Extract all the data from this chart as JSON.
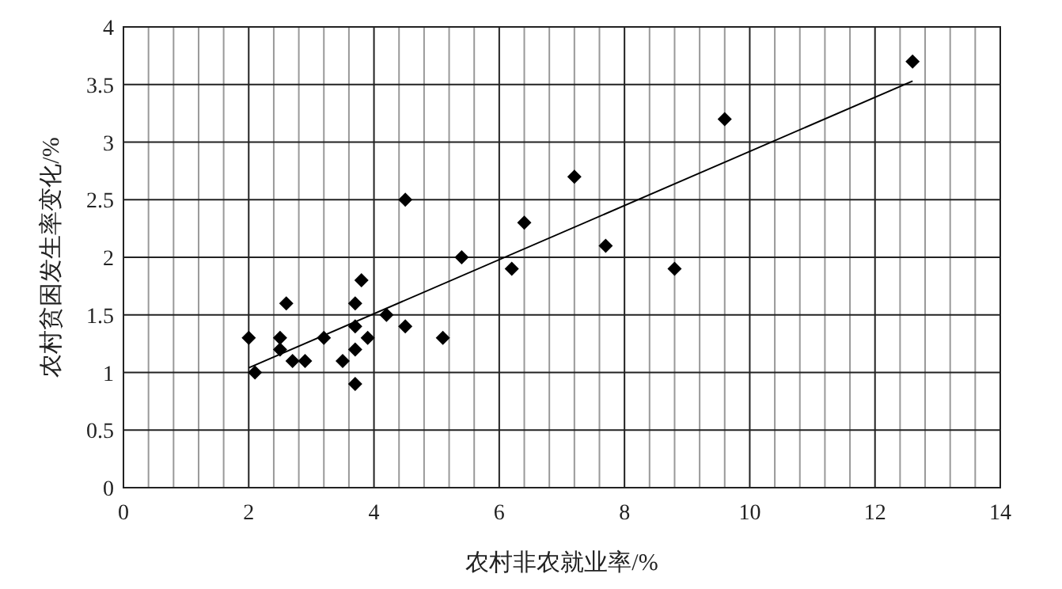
{
  "chart_data": {
    "type": "scatter",
    "xlabel": "农村非农就业率/%",
    "ylabel": "农村贫困发生率变化/%",
    "xlim": [
      0,
      14
    ],
    "ylim": [
      0,
      4
    ],
    "xticks": [
      0,
      {
        "value": 0.4,
        "label": null
      },
      {
        "value": 0.8,
        "label": null
      },
      {
        "value": 1.2,
        "label": null
      },
      {
        "value": 1.6,
        "label": null
      },
      2,
      {
        "value": 2.4,
        "label": null
      },
      {
        "value": 2.8,
        "label": null
      },
      {
        "value": 3.2,
        "label": null
      },
      {
        "value": 3.6,
        "label": null
      },
      4,
      {
        "value": 4.4,
        "label": null
      },
      {
        "value": 4.8,
        "label": null
      },
      {
        "value": 5.2,
        "label": null
      },
      {
        "value": 5.6,
        "label": null
      },
      6,
      {
        "value": 6.4,
        "label": null
      },
      {
        "value": 6.8,
        "label": null
      },
      {
        "value": 7.2,
        "label": null
      },
      {
        "value": 7.6,
        "label": null
      },
      8,
      {
        "value": 8.4,
        "label": null
      },
      {
        "value": 8.8,
        "label": null
      },
      {
        "value": 9.2,
        "label": null
      },
      {
        "value": 9.6,
        "label": null
      },
      10,
      {
        "value": 10.4,
        "label": null
      },
      {
        "value": 10.8,
        "label": null
      },
      {
        "value": 11.2,
        "label": null
      },
      {
        "value": 11.6,
        "label": null
      },
      12,
      {
        "value": 12.4,
        "label": null
      },
      {
        "value": 12.8,
        "label": null
      },
      {
        "value": 13.2,
        "label": null
      },
      {
        "value": 13.6,
        "label": null
      },
      14
    ],
    "yticks": [
      0,
      0.5,
      1,
      1.5,
      2,
      2.5,
      3,
      3.5,
      4
    ],
    "grid": true,
    "series": [
      {
        "marker": "diamond",
        "color": "#000000",
        "x": [
          2.0,
          2.1,
          2.5,
          2.5,
          2.6,
          2.7,
          2.9,
          3.2,
          3.5,
          3.7,
          3.7,
          3.7,
          3.7,
          3.8,
          3.9,
          4.2,
          4.5,
          4.5,
          5.1,
          5.4,
          6.2,
          6.4,
          7.2,
          7.7,
          8.8,
          9.6,
          12.6
        ],
        "values": [
          1.3,
          1.0,
          1.3,
          1.2,
          1.6,
          1.1,
          1.1,
          1.3,
          1.1,
          1.6,
          1.4,
          1.2,
          0.9,
          1.8,
          1.3,
          1.5,
          2.5,
          1.4,
          1.3,
          2.0,
          1.9,
          2.3,
          2.7,
          2.1,
          1.9,
          3.2,
          3.7
        ]
      },
      {
        "type": "line",
        "marker": "none",
        "color": "#000000",
        "x": [
          2.0,
          12.6
        ],
        "values": [
          1.04,
          3.53
        ]
      }
    ]
  }
}
